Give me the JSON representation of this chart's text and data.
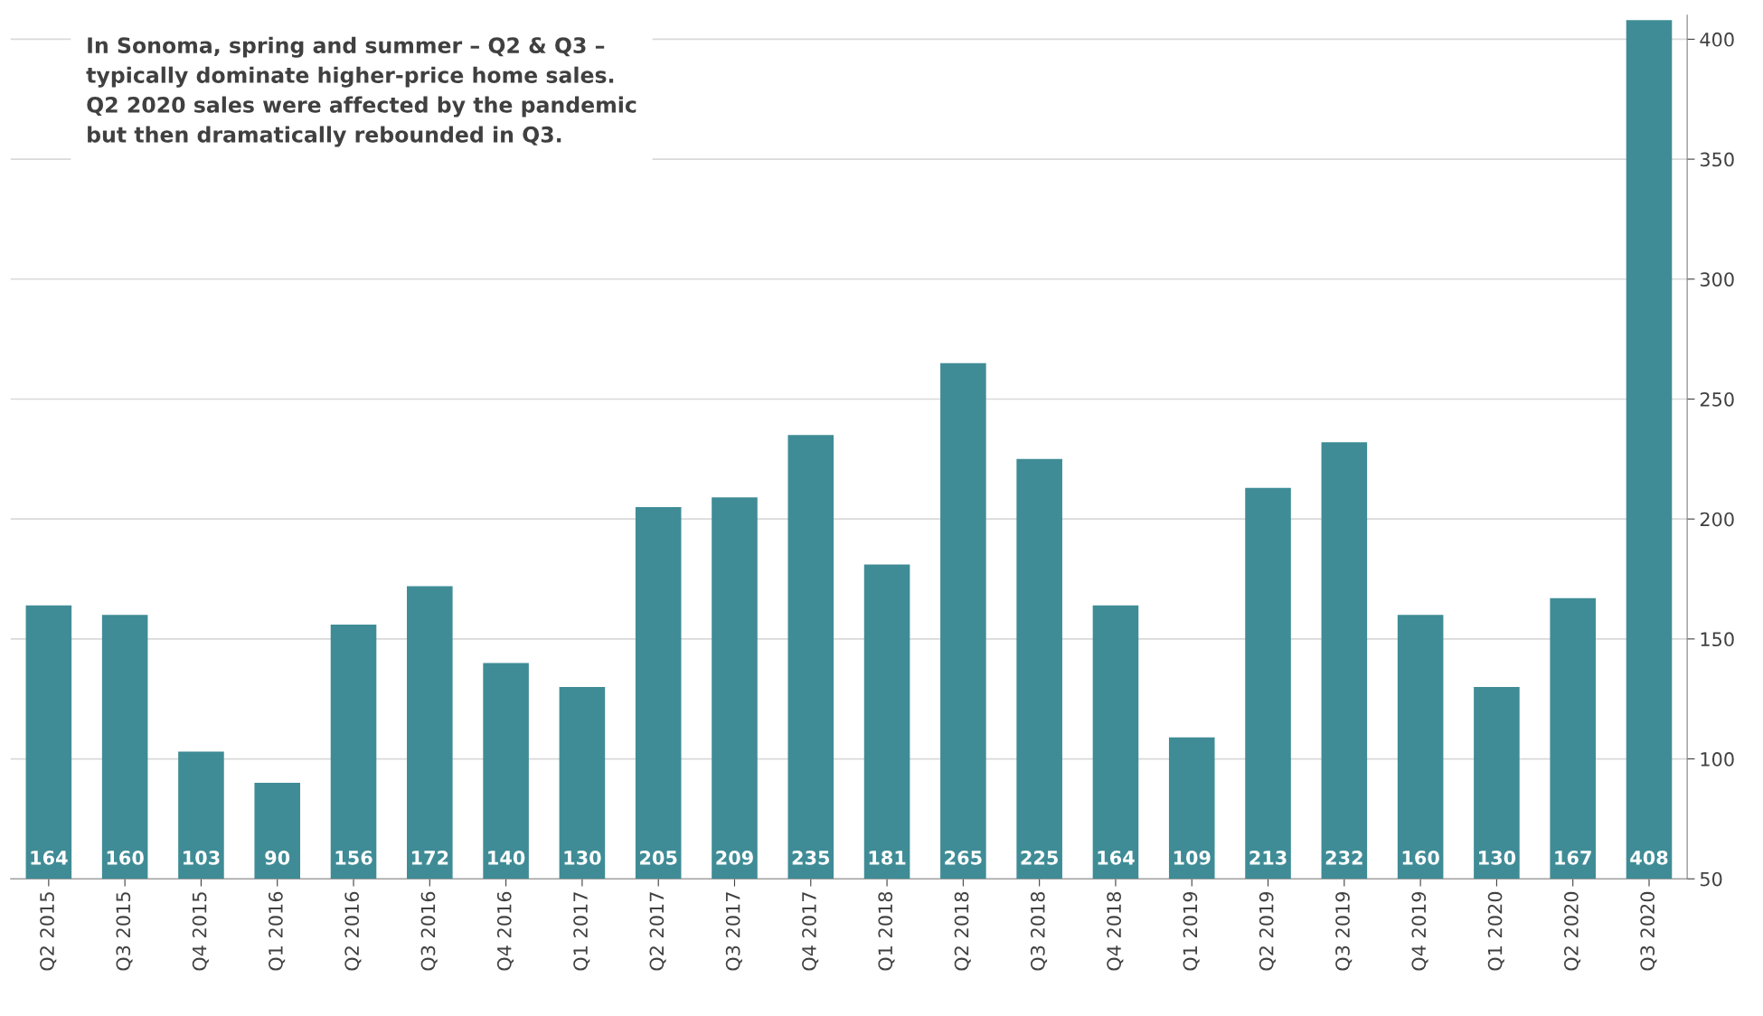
{
  "chart_data": {
    "type": "bar",
    "categories": [
      "Q2 2015",
      "Q3 2015",
      "Q4 2015",
      "Q1 2016",
      "Q2 2016",
      "Q3 2016",
      "Q4 2016",
      "Q1 2017",
      "Q2 2017",
      "Q3 2017",
      "Q4 2017",
      "Q1 2018",
      "Q2 2018",
      "Q3 2018",
      "Q4 2018",
      "Q1 2019",
      "Q2 2019",
      "Q3 2019",
      "Q4 2019",
      "Q1 2020",
      "Q2 2020",
      "Q3 2020"
    ],
    "values": [
      164,
      160,
      103,
      90,
      156,
      172,
      140,
      130,
      205,
      209,
      235,
      181,
      265,
      225,
      164,
      109,
      213,
      232,
      160,
      130,
      167,
      408
    ],
    "color": "#3f8c96",
    "ylim": [
      50,
      410
    ],
    "yticks": [
      50,
      100,
      150,
      200,
      250,
      300,
      350,
      400
    ],
    "grid": "y",
    "data_labels": true,
    "annotations": [
      "In Sonoma, spring and summer – Q2 & Q3 –\ntypically dominate higher-price home sales.\nQ2 2020 sales were affected by the pandemic\nbut then dramatically rebounded in Q3."
    ]
  }
}
